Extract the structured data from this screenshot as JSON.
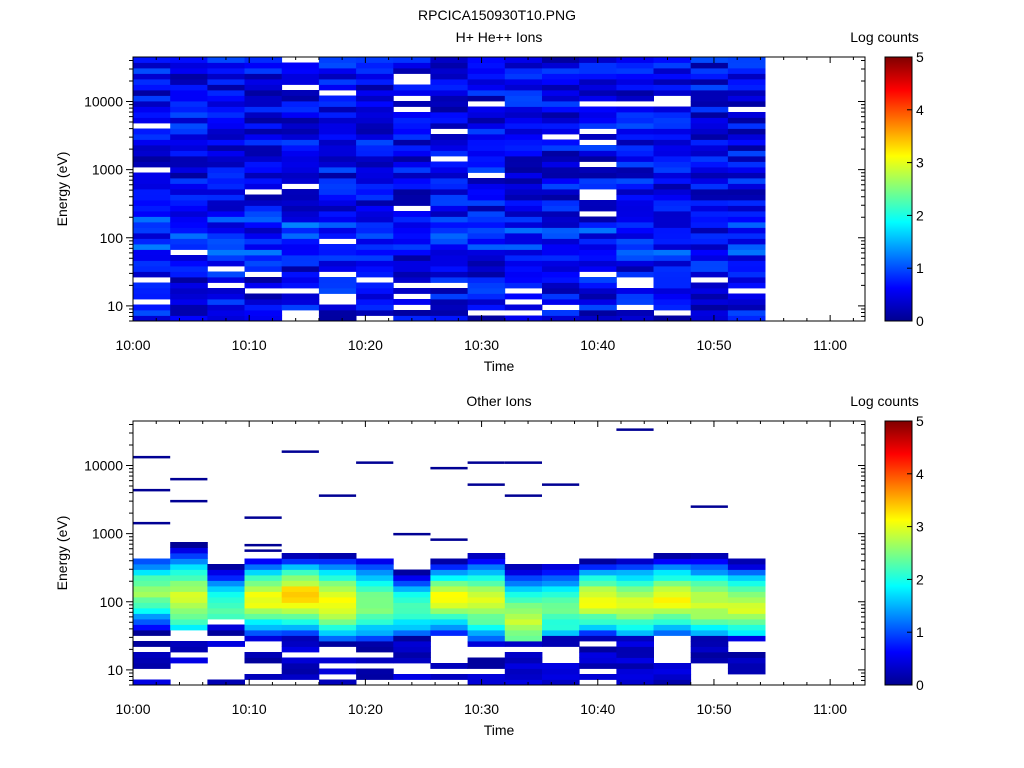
{
  "figure_title": "RPCICA150930T10.PNG",
  "chart_data": [
    {
      "type": "heatmap",
      "title": "H+ He++ Ions",
      "xlabel": "Time",
      "ylabel": "Energy (eV)",
      "x_ticks": [
        "10:00",
        "10:10",
        "10:20",
        "10:30",
        "10:40",
        "10:50",
        "11:00"
      ],
      "xlim": [
        "10:00",
        "11:03"
      ],
      "y_scale": "log",
      "ylim": [
        6,
        45000
      ],
      "y_ticks": [
        {
          "value": 10,
          "label": "10"
        },
        {
          "value": 100,
          "label": "100"
        },
        {
          "value": 1000,
          "label": "1000"
        },
        {
          "value": 10000,
          "label": "10000"
        }
      ],
      "data_end_time": "10:55",
      "time_bin_minutes": 3.2,
      "colorbar": {
        "label": "Log counts",
        "range": [
          0,
          5
        ],
        "ticks": [
          "0",
          "1",
          "2",
          "3",
          "4",
          "5"
        ]
      },
      "description_of_values": "log counts mostly 0.2-1.0 across all energies and times (dark to medium blue), scattered empty (white) bins, empty bins at low energies (<30 eV) in several time bins"
    },
    {
      "type": "heatmap",
      "title": "Other Ions",
      "xlabel": "Time",
      "ylabel": "Energy (eV)",
      "x_ticks": [
        "10:00",
        "10:10",
        "10:20",
        "10:30",
        "10:40",
        "10:50",
        "11:00"
      ],
      "xlim": [
        "10:00",
        "11:03"
      ],
      "y_scale": "log",
      "ylim": [
        6,
        45000
      ],
      "y_ticks": [
        {
          "value": 10,
          "label": "10"
        },
        {
          "value": 100,
          "label": "100"
        },
        {
          "value": 1000,
          "label": "1000"
        },
        {
          "value": 10000,
          "label": "10000"
        }
      ],
      "data_end_time": "10:55",
      "time_bin_minutes": 3.2,
      "colorbar": {
        "label": "Log counts",
        "range": [
          0,
          5
        ],
        "ticks": [
          "0",
          "1",
          "2",
          "3",
          "4",
          "5"
        ]
      },
      "peak_values_log_counts": [
        2.6,
        2.9,
        2.3,
        3.1,
        3.4,
        3.1,
        2.6,
        2.3,
        3.1,
        2.9,
        2.8,
        2.4,
        3.1,
        2.9,
        3.1,
        2.9,
        2.9
      ],
      "peak_energy_eV": [
        140,
        110,
        75,
        110,
        120,
        100,
        95,
        80,
        110,
        100,
        55,
        75,
        105,
        95,
        110,
        95,
        85
      ],
      "band_top_eV": [
        450,
        700,
        330,
        460,
        520,
        520,
        470,
        290,
        420,
        520,
        350,
        380,
        420,
        460,
        480,
        480,
        400
      ],
      "band_bottom_eV": [
        35,
        40,
        55,
        35,
        35,
        28,
        28,
        32,
        30,
        28,
        28,
        30,
        28,
        30,
        32,
        32,
        30
      ],
      "description_of_values": "main band of ions peaking at 2.3-3.4 log counts near 100 eV; sparse low-count (~0.1) lines at higher energies"
    }
  ]
}
